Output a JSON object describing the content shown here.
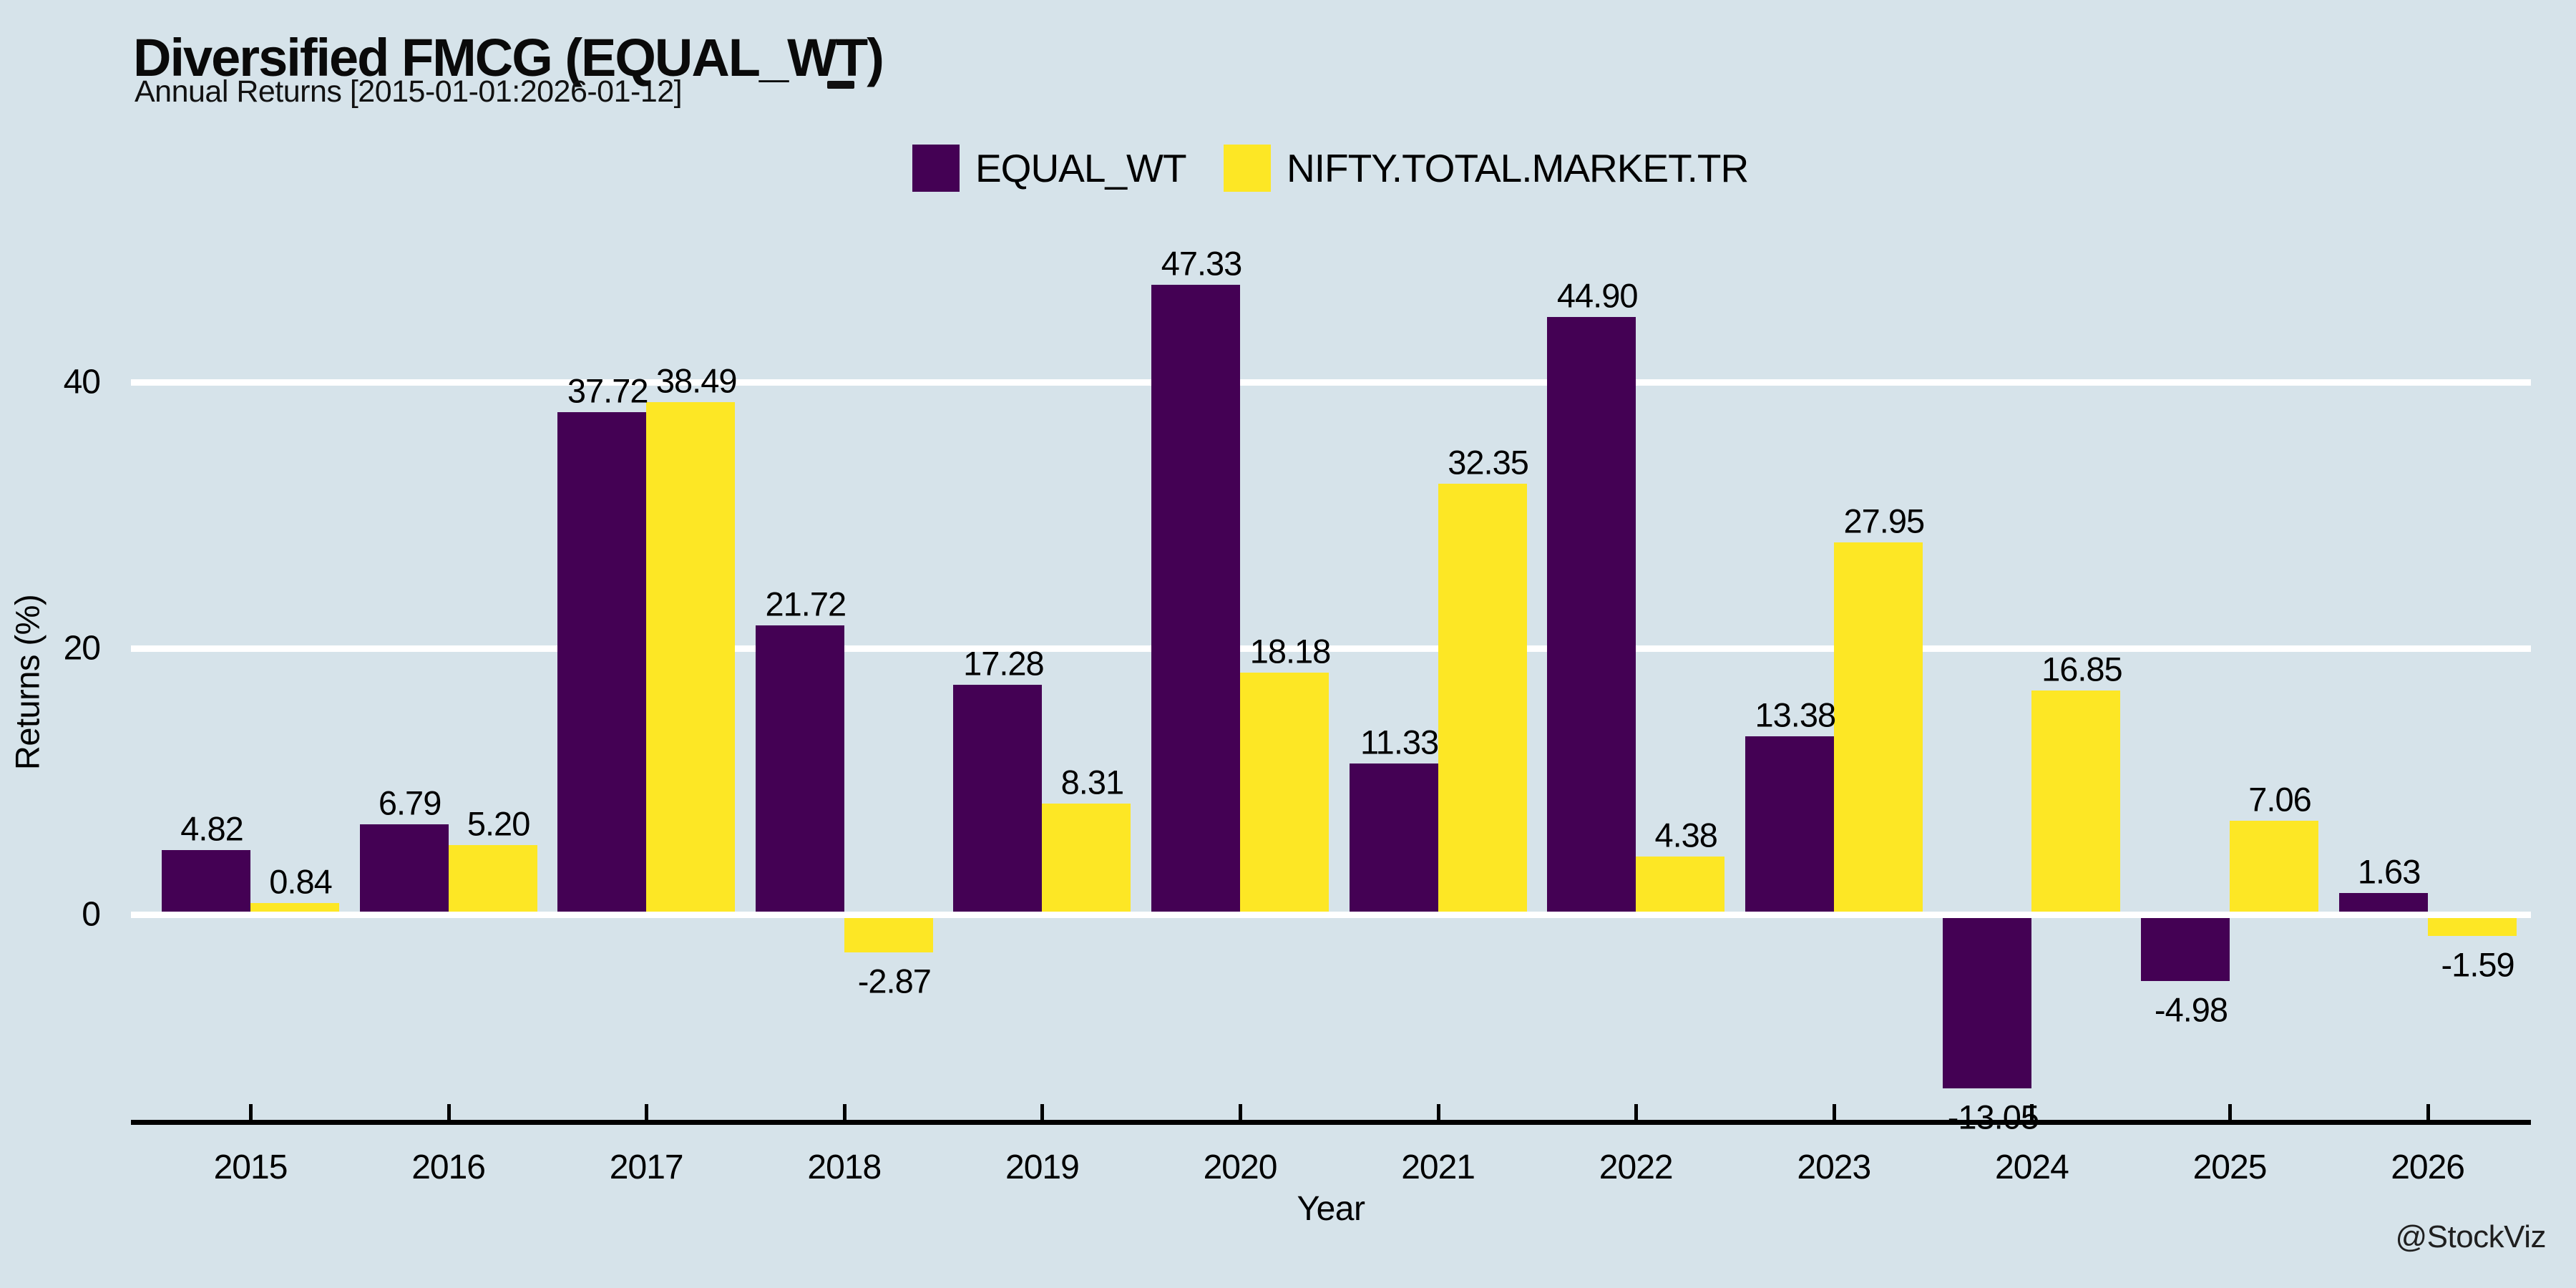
{
  "page": {
    "background": "#d6e3ea",
    "watermark": "@StockViz"
  },
  "header": {
    "title": "Diversified FMCG (EQUAL_WT)",
    "subtitle": "Annual Returns [2015-01-01:2026-01-12]"
  },
  "legend": {
    "items": [
      {
        "label": "EQUAL_WT",
        "color": "#440154"
      },
      {
        "label": "NIFTY.TOTAL.MARKET.TR",
        "color": "#FDE725"
      }
    ]
  },
  "axes": {
    "xlabel": "Year",
    "ylabel": "Returns (%)"
  },
  "chart_data": {
    "type": "bar",
    "title": "Diversified FMCG (EQUAL_WT)",
    "subtitle": "Annual Returns [2015-01-01:2026-01-12]",
    "xlabel": "Year",
    "ylabel": "Returns (%)",
    "categories": [
      "2015",
      "2016",
      "2017",
      "2018",
      "2019",
      "2020",
      "2021",
      "2022",
      "2023",
      "2024",
      "2025",
      "2026"
    ],
    "series": [
      {
        "name": "EQUAL_WT",
        "color": "#440154",
        "values": [
          4.82,
          6.79,
          37.72,
          21.72,
          17.28,
          47.33,
          11.33,
          44.9,
          13.38,
          -13.05,
          -4.98,
          1.63
        ],
        "labels": [
          "4.82",
          "6.79",
          "37.72",
          "21.72",
          "17.28",
          "47.33",
          "11.33",
          "44.90",
          "13.38",
          "-13.05",
          "-4.98",
          "1.63"
        ]
      },
      {
        "name": "NIFTY.TOTAL.MARKET.TR",
        "color": "#FDE725",
        "values": [
          0.84,
          5.2,
          38.49,
          -2.87,
          8.31,
          18.18,
          32.35,
          4.38,
          27.95,
          16.85,
          7.06,
          -1.59
        ],
        "labels": [
          "0.84",
          "5.20",
          "38.49",
          "-2.87",
          "8.31",
          "18.18",
          "32.35",
          "4.38",
          "27.95",
          "16.85",
          "7.06",
          "-1.59"
        ]
      }
    ],
    "yticks": [
      "0",
      "20",
      "40"
    ],
    "ytick_values": [
      0,
      20,
      40
    ],
    "ylim": [
      -16,
      50
    ],
    "grid": "horizontal-white",
    "gridline_color": "#ffffff",
    "legend_position": "top-center",
    "bar_value_labels": true,
    "watermark": "@StockViz"
  }
}
